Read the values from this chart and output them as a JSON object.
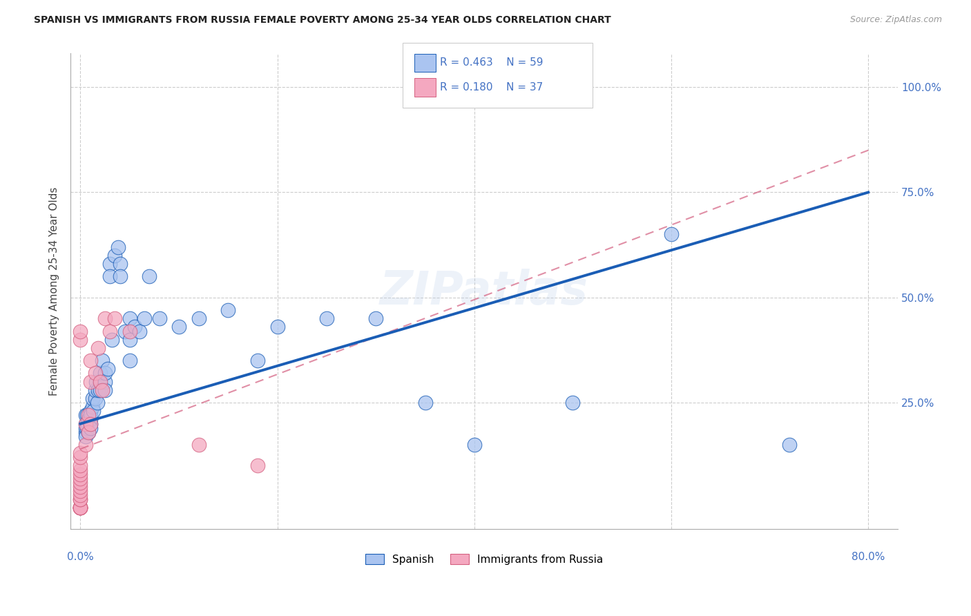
{
  "title": "SPANISH VS IMMIGRANTS FROM RUSSIA FEMALE POVERTY AMONG 25-34 YEAR OLDS CORRELATION CHART",
  "source": "Source: ZipAtlas.com",
  "ylabel": "Female Poverty Among 25-34 Year Olds",
  "legend_r_spanish": "R = 0.463",
  "legend_n_spanish": "N = 59",
  "legend_r_russia": "R = 0.180",
  "legend_n_russia": "N = 37",
  "legend_label_spanish": "Spanish",
  "legend_label_russia": "Immigrants from Russia",
  "color_spanish": "#aac4f0",
  "color_russia": "#f4a8c0",
  "color_line_spanish": "#1a5db5",
  "color_line_russia": "#d46080",
  "color_text_blue": "#4472c4",
  "watermark": "ZIPatlas",
  "spanish_x": [
    0.005,
    0.005,
    0.005,
    0.005,
    0.005,
    0.007,
    0.007,
    0.007,
    0.008,
    0.008,
    0.01,
    0.01,
    0.01,
    0.01,
    0.01,
    0.012,
    0.012,
    0.013,
    0.015,
    0.015,
    0.016,
    0.017,
    0.018,
    0.02,
    0.02,
    0.02,
    0.022,
    0.025,
    0.025,
    0.025,
    0.028,
    0.03,
    0.03,
    0.032,
    0.035,
    0.038,
    0.04,
    0.04,
    0.045,
    0.05,
    0.05,
    0.05,
    0.055,
    0.06,
    0.065,
    0.07,
    0.08,
    0.1,
    0.12,
    0.15,
    0.18,
    0.2,
    0.25,
    0.3,
    0.35,
    0.4,
    0.5,
    0.6,
    0.72
  ],
  "spanish_y": [
    0.18,
    0.2,
    0.22,
    0.19,
    0.17,
    0.2,
    0.22,
    0.19,
    0.18,
    0.21,
    0.2,
    0.23,
    0.21,
    0.19,
    0.22,
    0.24,
    0.26,
    0.23,
    0.26,
    0.28,
    0.3,
    0.25,
    0.28,
    0.3,
    0.32,
    0.28,
    0.35,
    0.3,
    0.32,
    0.28,
    0.33,
    0.58,
    0.55,
    0.4,
    0.6,
    0.62,
    0.58,
    0.55,
    0.42,
    0.45,
    0.4,
    0.35,
    0.43,
    0.42,
    0.45,
    0.55,
    0.45,
    0.43,
    0.45,
    0.47,
    0.35,
    0.43,
    0.45,
    0.45,
    0.25,
    0.15,
    0.25,
    0.65,
    0.15
  ],
  "russia_x": [
    0.0,
    0.0,
    0.0,
    0.0,
    0.0,
    0.0,
    0.0,
    0.0,
    0.0,
    0.0,
    0.0,
    0.0,
    0.0,
    0.0,
    0.0,
    0.0,
    0.0,
    0.0,
    0.0,
    0.0,
    0.005,
    0.005,
    0.008,
    0.008,
    0.01,
    0.01,
    0.01,
    0.015,
    0.018,
    0.02,
    0.022,
    0.025,
    0.03,
    0.035,
    0.05,
    0.12,
    0.18
  ],
  "russia_y": [
    0.0,
    0.0,
    0.0,
    0.0,
    0.0,
    0.0,
    0.02,
    0.02,
    0.03,
    0.04,
    0.05,
    0.06,
    0.07,
    0.08,
    0.09,
    0.1,
    0.12,
    0.13,
    0.4,
    0.42,
    0.15,
    0.2,
    0.18,
    0.22,
    0.3,
    0.35,
    0.2,
    0.32,
    0.38,
    0.3,
    0.28,
    0.45,
    0.42,
    0.45,
    0.42,
    0.15,
    0.1
  ],
  "line_spanish_x0": 0.0,
  "line_spanish_x1": 0.8,
  "line_spanish_y0": 0.2,
  "line_spanish_y1": 0.75,
  "line_russia_x0": 0.0,
  "line_russia_x1": 0.8,
  "line_russia_y0": 0.14,
  "line_russia_y1": 0.85,
  "xlim_min": -0.01,
  "xlim_max": 0.83,
  "ylim_min": -0.05,
  "ylim_max": 1.08,
  "xtick_left_val": 0.0,
  "xtick_right_val": 0.8,
  "ytick_vals": [
    0.0,
    0.25,
    0.5,
    0.75,
    1.0
  ],
  "ytick_labels": [
    "",
    "25.0%",
    "50.0%",
    "75.0%",
    "100.0%"
  ]
}
